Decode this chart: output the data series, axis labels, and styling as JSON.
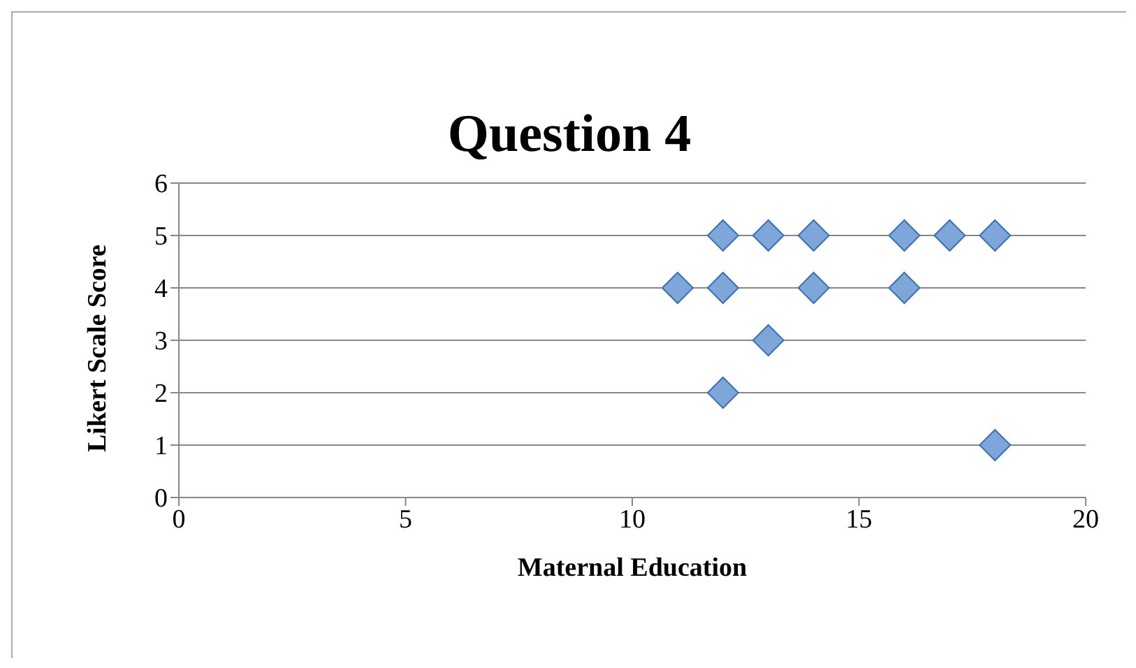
{
  "chart_data": {
    "type": "scatter",
    "title": "Question 4",
    "xlabel": "Maternal Education",
    "ylabel": "Likert Scale Score",
    "x": [
      12,
      13,
      14,
      16,
      17,
      18,
      11,
      12,
      14,
      16,
      13,
      12,
      18
    ],
    "series": [
      {
        "color": "#7ea6d8",
        "values": [
          5,
          5,
          5,
          5,
          5,
          5,
          4,
          4,
          4,
          4,
          3,
          2,
          1
        ]
      }
    ],
    "xlim": [
      0,
      20
    ],
    "xticks": [
      0,
      5,
      10,
      15,
      20
    ],
    "ylim": [
      0,
      6
    ],
    "yticks": [
      0,
      1,
      2,
      3,
      4,
      5,
      6
    ],
    "grid": "y",
    "marker": "diamond"
  }
}
